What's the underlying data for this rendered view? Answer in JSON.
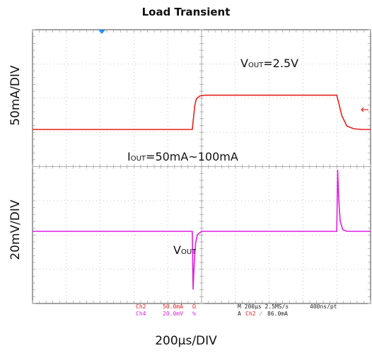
{
  "chart_data": {
    "type": "line",
    "title": "Load Transient",
    "xlabel": "200µs/DIV",
    "x_unit": "µs",
    "xlim": [
      0,
      2000
    ],
    "panels": [
      {
        "ylabel": "50mA/DIV",
        "annotation_vout": {
          "base": "V",
          "sub": "OUT",
          "rest": "=2.5V"
        },
        "annotation_iout": {
          "base": "I",
          "sub": "OUT",
          "rest": "=50mA~100mA"
        },
        "series": [
          {
            "channel": "Ch2",
            "color": "#e8201c",
            "x": [
              0,
              945,
              960,
              970,
              990,
              1020,
              1100,
              1800,
              1815,
              1830,
              1860,
              1900,
              1950,
              2000
            ],
            "y": [
              50,
              50,
              85,
              95,
              99,
              100,
              100,
              100,
              85,
              70,
              55,
              51,
              50,
              50
            ]
          }
        ]
      },
      {
        "ylabel": "20mV/DIV",
        "annotation_vout": {
          "base": "V",
          "sub": "OUT",
          "rest": ""
        },
        "series": [
          {
            "channel": "Ch4",
            "color": "#e01ee0",
            "x": [
              0,
              945,
              950,
              957,
              965,
              975,
              1000,
              1800,
              1805,
              1812,
              1820,
              1835,
              1860,
              2000
            ],
            "y": [
              0,
              0,
              -34,
              -18,
              -7,
              -2,
              0,
              0,
              36,
              18,
              6,
              1,
              0,
              0
            ]
          }
        ]
      }
    ],
    "scope_readout": {
      "ch2": {
        "name": "Ch2",
        "scale": "50.0mA",
        "unit": "Ω"
      },
      "ch4": {
        "name": "Ch4",
        "scale": "20.0mV",
        "unit": "%"
      },
      "timebase": "M 200µs 2.5MS/s",
      "record": "400ns/pt",
      "trigger_prefix": "A",
      "trigger_channel": "Ch2",
      "trigger_slope": "⁄",
      "trigger_level": "86.0mA"
    },
    "colors": {
      "grid": "#b5b5b5",
      "ch2": "#e8201c",
      "ch4": "#e01ee0",
      "trigger_marker": "#1e90ff",
      "readout_text": "#222222"
    }
  }
}
